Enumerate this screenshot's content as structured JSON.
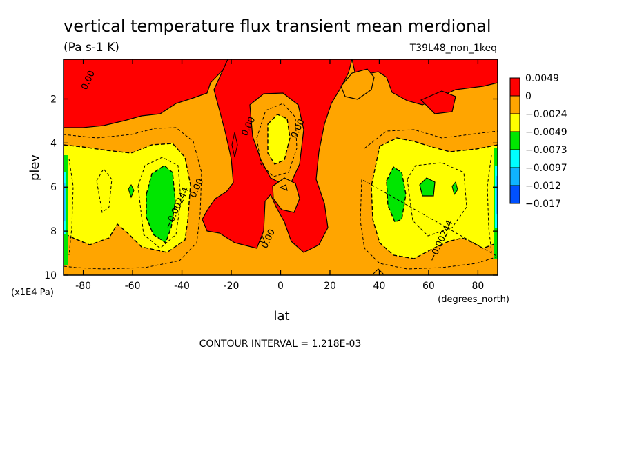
{
  "chart_data": {
    "type": "heatmap",
    "title": "vertical temperature flux transient mean merdional",
    "units": "(Pa s-1 K)",
    "run_label": "T39L48_non_1keq",
    "xlabel": "lat",
    "x_units": "(degrees_north)",
    "ylabel": "plev",
    "y_units": "(x1E4 Pa)",
    "x_range": [
      -88,
      88
    ],
    "y_range": [
      0.2,
      10
    ],
    "y_inverted": true,
    "x_ticks": [
      "-80",
      "-60",
      "-40",
      "-20",
      "0",
      "20",
      "40",
      "60",
      "80"
    ],
    "x_tick_values": [
      -80,
      -60,
      -40,
      -20,
      0,
      20,
      40,
      60,
      80
    ],
    "y_ticks": [
      "2",
      "4",
      "6",
      "8",
      "10"
    ],
    "y_tick_values": [
      2,
      4,
      6,
      8,
      10
    ],
    "colorbar": {
      "labels": [
        "0.0049",
        "0",
        "−0.0024",
        "−0.0049",
        "−0.0073",
        "−0.0097",
        "−0.012",
        "−0.017"
      ],
      "colors": [
        "#ff0000",
        "#ffa500",
        "#ffff00",
        "#00e600",
        "#00ffff",
        "#0fb4ff",
        "#0050ff"
      ]
    },
    "contour_labels": [
      {
        "text": "0.00",
        "lat": -77,
        "plev": 1.2
      },
      {
        "text": "0.00",
        "lat": -33,
        "plev": 6.1
      },
      {
        "text": "−0.00244",
        "lat": -41,
        "plev": 7.0
      },
      {
        "text": "0.00",
        "lat": -12,
        "plev": 3.3
      },
      {
        "text": "0.00",
        "lat": 8,
        "plev": 3.4
      },
      {
        "text": "0.00",
        "lat": -4,
        "plev": 8.4
      },
      {
        "text": "−0.00244",
        "lat": 66,
        "plev": 8.5
      }
    ],
    "footer": "CONTOUR INTERVAL = 1.218E-03"
  }
}
